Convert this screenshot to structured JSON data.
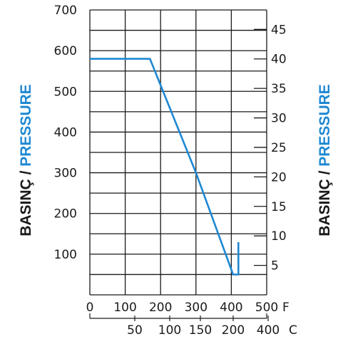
{
  "chart_data": {
    "type": "line",
    "x_label_top_unit": "F",
    "x_ticks_top": [
      0,
      100,
      200,
      300,
      400,
      500
    ],
    "x_label_bottom_unit": "C",
    "x_ticks_bottom": [
      50,
      100,
      150,
      200,
      400
    ],
    "y_ticks_left": [
      700,
      600,
      500,
      400,
      300,
      200,
      100
    ],
    "y_ticks_right": [
      45,
      40,
      35,
      30,
      25,
      20,
      15,
      10,
      5
    ],
    "xlim": [
      0,
      500
    ],
    "ylim": [
      0,
      700
    ],
    "y_right_lim": [
      0,
      48.3
    ],
    "grid": true,
    "series": [
      {
        "color": "#1e88d2",
        "x": [
          0,
          170,
          300,
          405,
          420,
          420
        ],
        "y": [
          580,
          580,
          300,
          50,
          50,
          0
        ]
      }
    ],
    "side_label": {
      "part1": "BASINÇ",
      "separator": " / ",
      "part2": "PRESSURE",
      "color1": "#1a1a1a",
      "color2": "#1e88d2"
    }
  }
}
